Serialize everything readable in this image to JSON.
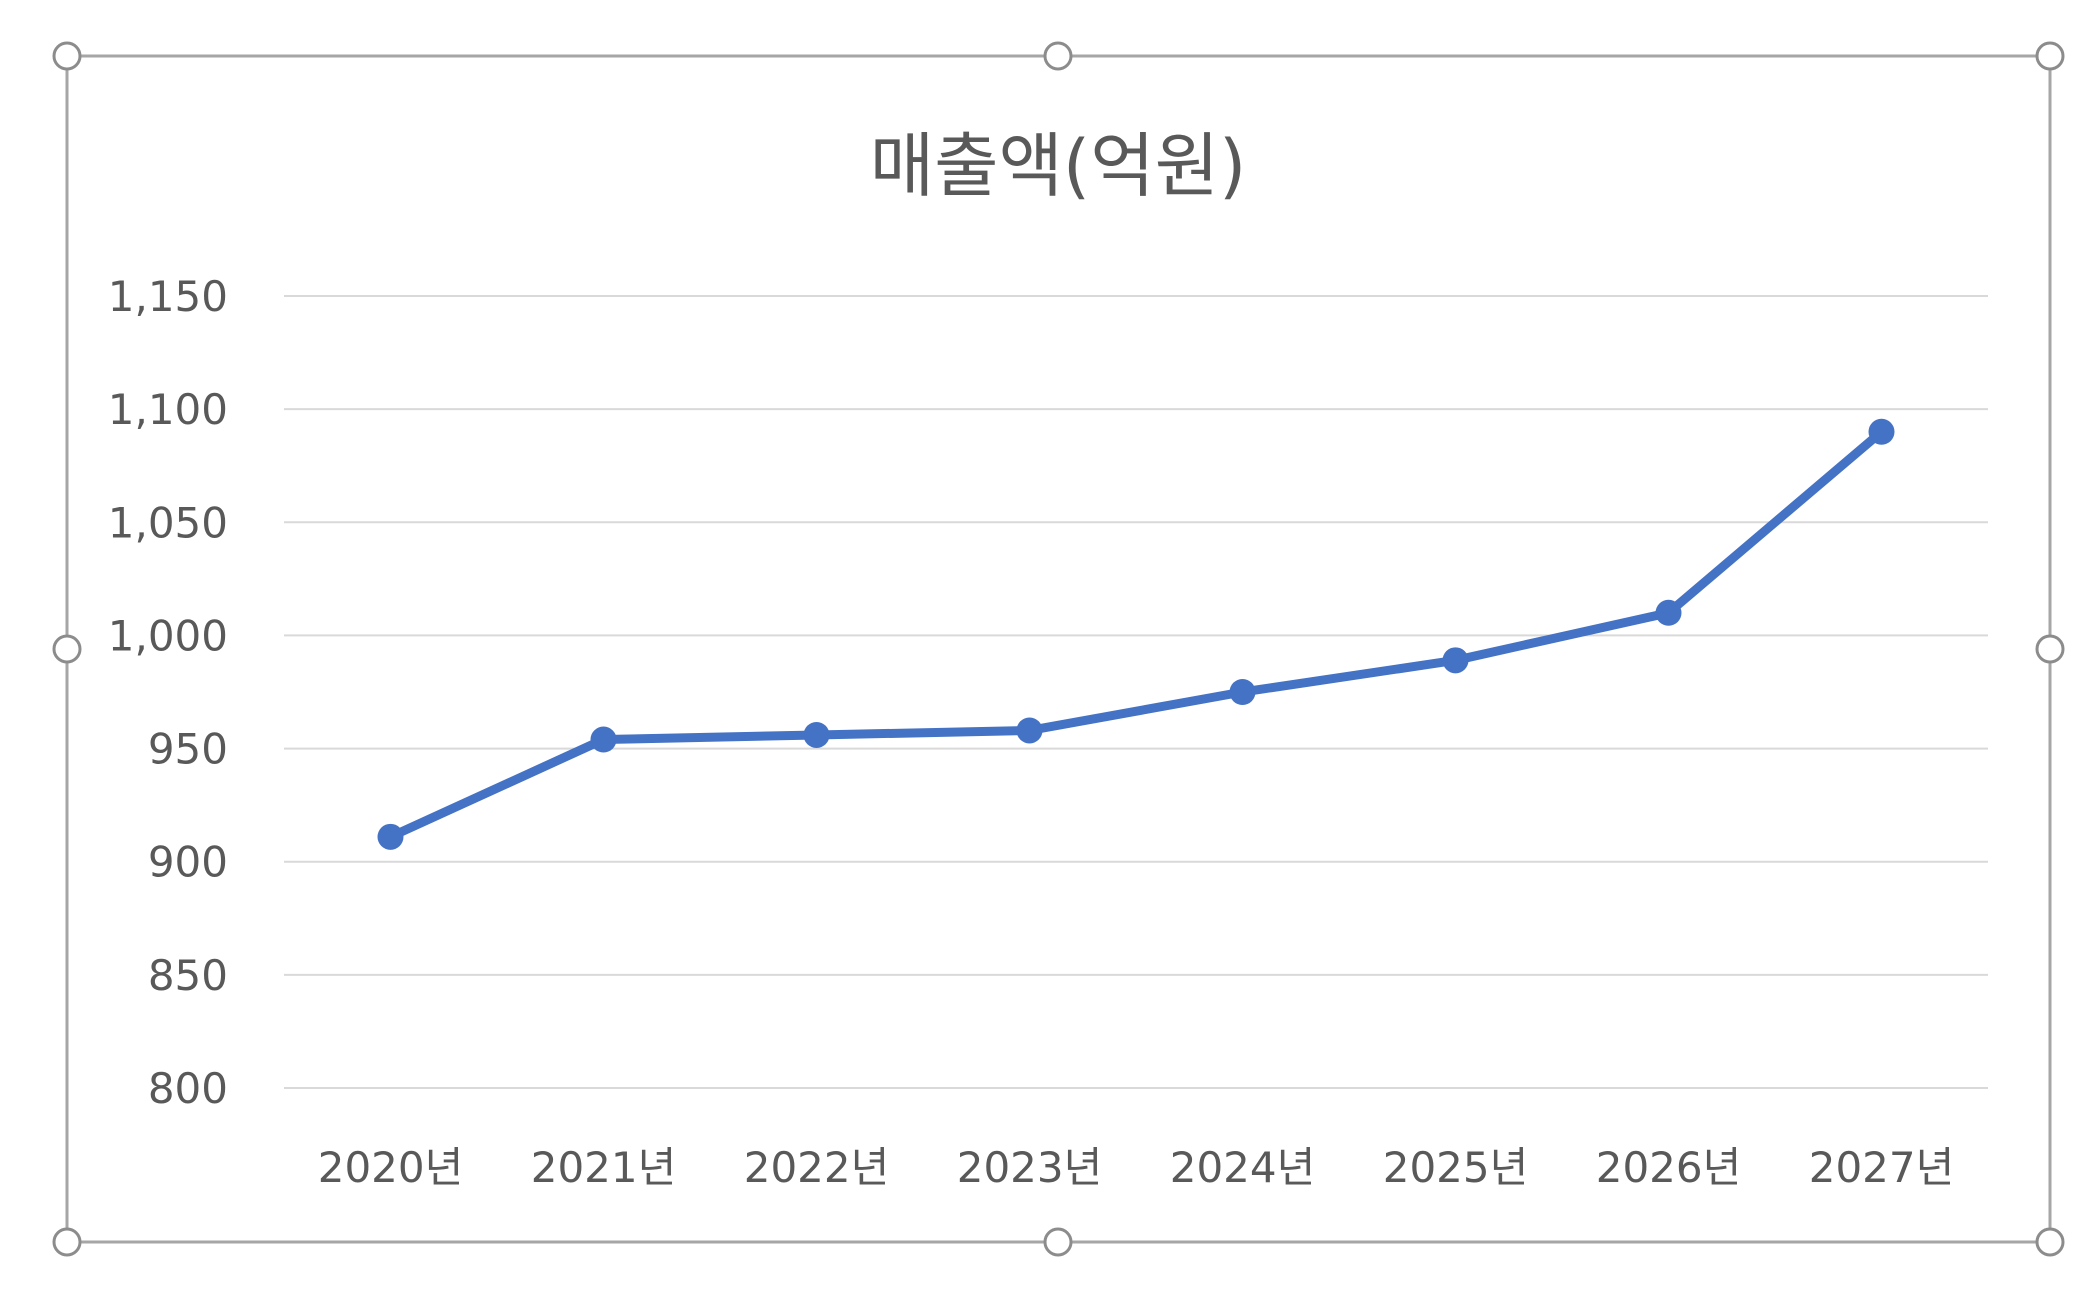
{
  "chart_data": {
    "type": "line",
    "title": "매출액(억원)",
    "categories": [
      "2020년",
      "2021년",
      "2022년",
      "2023년",
      "2024년",
      "2025년",
      "2026년",
      "2027년"
    ],
    "series": [
      {
        "values": [
          911,
          954,
          956,
          958,
          975,
          989,
          1010,
          1090
        ]
      }
    ],
    "ylim": [
      800,
      1150
    ],
    "yticks": [
      800,
      850,
      900,
      950,
      1000,
      1050,
      1100,
      1150
    ],
    "ytick_labels": [
      "800",
      "850",
      "900",
      "950",
      "1,000",
      "1,050",
      "1,100",
      "1,150"
    ],
    "grid": true,
    "legend": "none",
    "colors": {
      "line": "#4472C4",
      "gridline": "#D9D9D9",
      "text": "#595959",
      "frame": "#A6A6A6"
    }
  }
}
